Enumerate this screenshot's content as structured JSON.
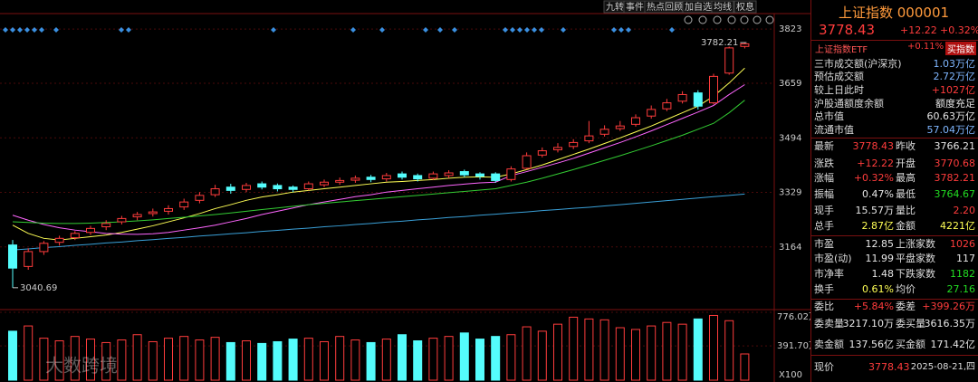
{
  "toolbar": {
    "items": [
      "九转",
      "事件",
      "热点回顾",
      "加自选",
      "均线",
      "权息"
    ]
  },
  "watermark": "大数跨境",
  "chart_data": {
    "type": "candlestick",
    "open": [
      3170,
      3105,
      3150,
      3178,
      3192,
      3208,
      3225,
      3240,
      3255,
      3265,
      3272,
      3285,
      3305,
      3322,
      3345,
      3338,
      3355,
      3350,
      3345,
      3340,
      3352,
      3360,
      3366,
      3375,
      3370,
      3385,
      3380,
      3372,
      3380,
      3392,
      3385,
      3385,
      3368,
      3402,
      3442,
      3458,
      3468,
      3485,
      3505,
      3522,
      3535,
      3560,
      3582,
      3605,
      3630,
      3600,
      3690,
      3770.68
    ],
    "high": [
      3185,
      3160,
      3182,
      3198,
      3212,
      3228,
      3245,
      3258,
      3270,
      3280,
      3290,
      3310,
      3330,
      3352,
      3355,
      3358,
      3362,
      3356,
      3350,
      3362,
      3368,
      3374,
      3380,
      3382,
      3388,
      3392,
      3386,
      3392,
      3396,
      3398,
      3390,
      3390,
      3408,
      3450,
      3465,
      3478,
      3490,
      3545,
      3532,
      3545,
      3565,
      3592,
      3612,
      3635,
      3638,
      3688,
      3770,
      3782.21
    ],
    "low": [
      3040.69,
      3095,
      3140,
      3168,
      3185,
      3200,
      3215,
      3232,
      3245,
      3256,
      3262,
      3276,
      3296,
      3315,
      3325,
      3330,
      3338,
      3332,
      3330,
      3335,
      3345,
      3352,
      3358,
      3360,
      3362,
      3368,
      3362,
      3366,
      3372,
      3375,
      3368,
      3358,
      3362,
      3398,
      3435,
      3450,
      3460,
      3478,
      3498,
      3515,
      3528,
      3552,
      3575,
      3598,
      3580,
      3595,
      3685,
      3764.67
    ],
    "close": [
      3100,
      3150,
      3175,
      3190,
      3205,
      3220,
      3235,
      3250,
      3262,
      3270,
      3280,
      3300,
      3320,
      3340,
      3335,
      3350,
      3345,
      3340,
      3338,
      3355,
      3360,
      3365,
      3372,
      3368,
      3380,
      3375,
      3370,
      3385,
      3388,
      3382,
      3378,
      3365,
      3400,
      3440,
      3455,
      3465,
      3480,
      3500,
      3520,
      3530,
      3555,
      3580,
      3600,
      3625,
      3590,
      3680,
      3766.21,
      3778.43
    ],
    "volume": [
      560,
      620,
      480,
      450,
      500,
      470,
      430,
      460,
      520,
      440,
      480,
      500,
      460,
      490,
      430,
      450,
      420,
      440,
      470,
      480,
      440,
      500,
      460,
      430,
      470,
      520,
      450,
      480,
      500,
      540,
      470,
      500,
      520,
      610,
      560,
      640,
      720,
      700,
      690,
      600,
      580,
      620,
      660,
      640,
      700,
      740,
      680,
      300
    ],
    "ma": [
      {
        "color": "#ffff55",
        "values": [
          3230,
          3205,
          3190,
          3185,
          3190,
          3195,
          3200,
          3208,
          3218,
          3228,
          3240,
          3252,
          3265,
          3280,
          3292,
          3305,
          3315,
          3322,
          3330,
          3335,
          3340,
          3345,
          3350,
          3355,
          3360,
          3362,
          3365,
          3368,
          3372,
          3375,
          3376,
          3375,
          3385,
          3398,
          3412,
          3428,
          3444,
          3460,
          3477,
          3494,
          3512,
          3530,
          3550,
          3570,
          3590,
          3620,
          3660,
          3705
        ]
      },
      {
        "color": "#ff66ff",
        "values": [
          3260,
          3245,
          3232,
          3222,
          3215,
          3210,
          3205,
          3203,
          3202,
          3204,
          3208,
          3215,
          3222,
          3230,
          3240,
          3250,
          3262,
          3272,
          3282,
          3292,
          3300,
          3308,
          3316,
          3322,
          3330,
          3335,
          3340,
          3345,
          3350,
          3354,
          3358,
          3360,
          3380,
          3392,
          3405,
          3418,
          3432,
          3448,
          3464,
          3480,
          3497,
          3515,
          3534,
          3553,
          3572,
          3592,
          3625,
          3655
        ]
      },
      {
        "color": "#33cc33",
        "values": [
          3240,
          3238,
          3236,
          3235,
          3235,
          3236,
          3238,
          3240,
          3243,
          3246,
          3250,
          3254,
          3258,
          3262,
          3267,
          3272,
          3277,
          3282,
          3287,
          3292,
          3296,
          3300,
          3304,
          3308,
          3312,
          3316,
          3320,
          3324,
          3328,
          3332,
          3336,
          3340,
          3350,
          3360,
          3372,
          3385,
          3398,
          3412,
          3426,
          3440,
          3455,
          3470,
          3486,
          3502,
          3520,
          3538,
          3570,
          3608
        ]
      },
      {
        "color": "#3aa0d8",
        "values": [
          3155,
          3158,
          3162,
          3165,
          3169,
          3172,
          3176,
          3179,
          3183,
          3186,
          3190,
          3193,
          3197,
          3200,
          3204,
          3207,
          3211,
          3214,
          3218,
          3221,
          3225,
          3228,
          3232,
          3235,
          3239,
          3242,
          3246,
          3249,
          3253,
          3256,
          3260,
          3263,
          3267,
          3270,
          3274,
          3277,
          3281,
          3284,
          3288,
          3292,
          3296,
          3300,
          3304,
          3308,
          3312,
          3316,
          3320,
          3324
        ]
      }
    ],
    "up_color": "#ff3c3c",
    "down_color": "#54fcfc",
    "ylim": [
      2980,
      3870
    ],
    "yticks": [
      3823,
      3659,
      3494,
      3329,
      3164
    ],
    "vlim": [
      0,
      776.02
    ],
    "vticks": [
      {
        "value": 776.02,
        "label": "776.02万"
      },
      {
        "value": 391.7,
        "label": "391.70万"
      }
    ],
    "volume_unit": "X100"
  },
  "panel": {
    "title": "上证指数 000001",
    "price": "3778.43",
    "change": "+12.22",
    "change_pct": "+0.32%",
    "etf": {
      "name": "上证指数ETF",
      "change": "+0.11%",
      "button": "买指数"
    },
    "summary": [
      [
        "三市成交额(沪深京)",
        "1.03万亿"
      ],
      [
        "预估成交额",
        "2.72万亿"
      ],
      [
        "较上日此时",
        "+1027亿"
      ],
      [
        "沪股通额度余额",
        "额度充足"
      ],
      [
        "总市值",
        "60.63万亿"
      ],
      [
        "流通市值",
        "57.04万亿"
      ]
    ],
    "quote": [
      [
        "最新",
        "3778.43",
        "昨收",
        "3766.21"
      ],
      [
        "涨跌",
        "+12.22",
        "开盘",
        "3770.68"
      ],
      [
        "涨幅",
        "+0.32%",
        "最高",
        "3782.21"
      ],
      [
        "振幅",
        "0.47%",
        "最低",
        "3764.67"
      ],
      [
        "现手",
        "15.57万",
        "量比",
        "2.20"
      ],
      [
        "总手",
        "2.87亿",
        "金额",
        "4221亿"
      ]
    ],
    "market": [
      [
        "市盈",
        "12.85",
        "上涨家数",
        "1026"
      ],
      [
        "市盈(动)",
        "11.99",
        "平盘家数",
        "117"
      ],
      [
        "市净率",
        "1.48",
        "下跌家数",
        "1182"
      ],
      [
        "换手",
        "0.61%",
        "均价",
        "27.16"
      ]
    ],
    "orders": [
      [
        "委比",
        "+5.84%",
        "委差",
        "+399.26万"
      ],
      [
        "委卖量",
        "3217.10万",
        "委买量",
        "3616.35万"
      ],
      [
        "卖金额",
        "137.56亿",
        "买金额",
        "171.42亿"
      ]
    ],
    "footer": [
      "现价",
      "3778.43",
      "2025-08-21,四"
    ]
  }
}
